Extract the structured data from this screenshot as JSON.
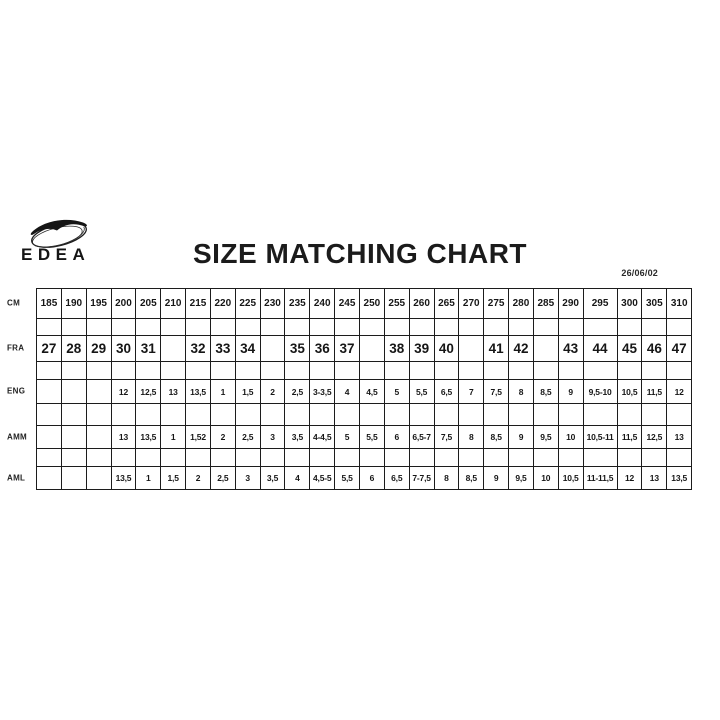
{
  "header": {
    "brand": "EDEA",
    "title": "SIZE MATCHING CHART",
    "date": "26/06/02"
  },
  "chart_data": {
    "type": "table",
    "title": "SIZE MATCHING CHART",
    "columns_cm": [
      "185",
      "190",
      "195",
      "200",
      "205",
      "210",
      "215",
      "220",
      "225",
      "230",
      "235",
      "240",
      "245",
      "250",
      "255",
      "260",
      "265",
      "270",
      "275",
      "280",
      "285",
      "290",
      "295",
      "300",
      "305",
      "310"
    ],
    "wide_column": "295",
    "rows": [
      {
        "label": "CM",
        "values": [
          "185",
          "190",
          "195",
          "200",
          "205",
          "210",
          "215",
          "220",
          "225",
          "230",
          "235",
          "240",
          "245",
          "250",
          "255",
          "260",
          "265",
          "270",
          "275",
          "280",
          "285",
          "290",
          "295",
          "300",
          "305",
          "310"
        ]
      },
      {
        "label": "FRA",
        "values": [
          "27",
          "28",
          "29",
          "30",
          "31",
          "",
          "32",
          "33",
          "34",
          "",
          "35",
          "36",
          "37",
          "",
          "38",
          "39",
          "40",
          "",
          "41",
          "42",
          "",
          "43",
          "44",
          "45",
          "46",
          "47"
        ]
      },
      {
        "label": "ENG",
        "values": [
          "",
          "",
          "",
          "12",
          "12,5",
          "13",
          "13,5",
          "1",
          "1,5",
          "2",
          "2,5",
          "3-3,5",
          "4",
          "4,5",
          "5",
          "5,5",
          "6,5",
          "7",
          "7,5",
          "8",
          "8,5",
          "9",
          "9,5-10",
          "10,5",
          "11,5",
          "12"
        ]
      },
      {
        "label": "AMM",
        "values": [
          "",
          "",
          "",
          "13",
          "13,5",
          "1",
          "1,52",
          "2",
          "2,5",
          "3",
          "3,5",
          "4-4,5",
          "5",
          "5,5",
          "6",
          "6,5-7",
          "7,5",
          "8",
          "8,5",
          "9",
          "9,5",
          "10",
          "10,5-11",
          "11,5",
          "12,5",
          "13"
        ]
      },
      {
        "label": "AML",
        "values": [
          "",
          "",
          "",
          "13,5",
          "1",
          "1,5",
          "2",
          "2,5",
          "3",
          "3,5",
          "4",
          "4,5-5",
          "5,5",
          "6",
          "6,5",
          "7-7,5",
          "8",
          "8,5",
          "9",
          "9,5",
          "10",
          "10,5",
          "11-11,5",
          "12",
          "13",
          "13,5"
        ]
      }
    ]
  }
}
